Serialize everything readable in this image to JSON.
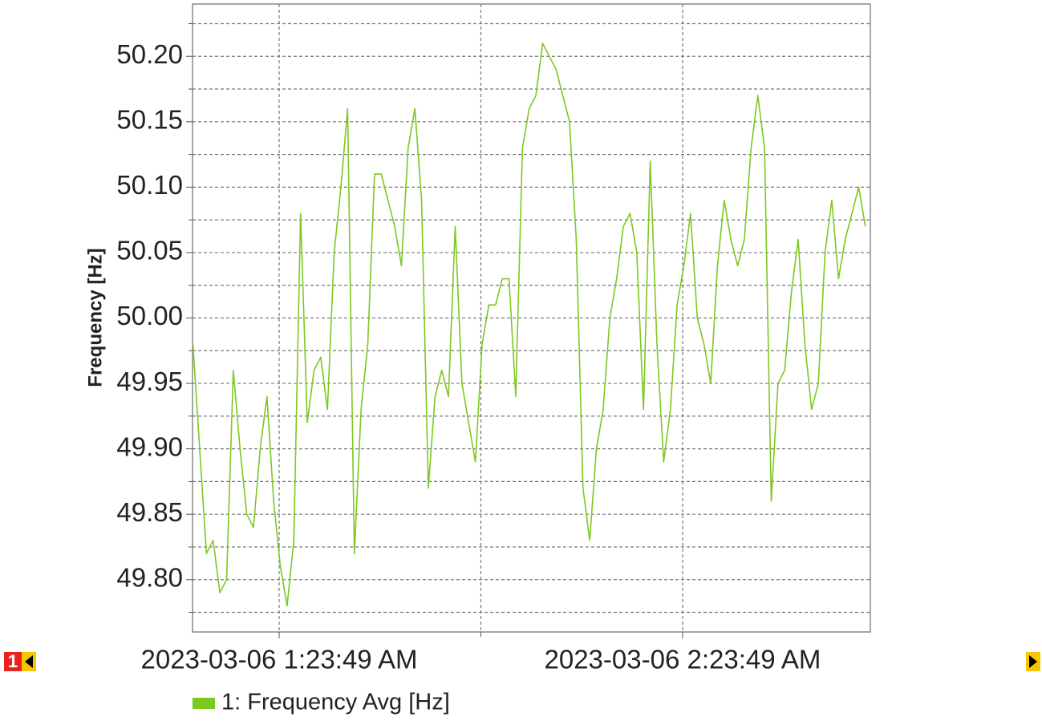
{
  "chart_data": {
    "type": "line",
    "y_label": "Frequency [Hz]",
    "x": [
      "2023-03-06T01:11:00",
      "2023-03-06T01:12:00",
      "2023-03-06T01:13:00",
      "2023-03-06T01:14:00",
      "2023-03-06T01:15:00",
      "2023-03-06T01:16:00",
      "2023-03-06T01:17:00",
      "2023-03-06T01:18:00",
      "2023-03-06T01:19:00",
      "2023-03-06T01:20:00",
      "2023-03-06T01:21:00",
      "2023-03-06T01:22:00",
      "2023-03-06T01:23:00",
      "2023-03-06T01:24:00",
      "2023-03-06T01:25:00",
      "2023-03-06T01:26:00",
      "2023-03-06T01:27:00",
      "2023-03-06T01:28:00",
      "2023-03-06T01:29:00",
      "2023-03-06T01:30:00",
      "2023-03-06T01:31:00",
      "2023-03-06T01:32:00",
      "2023-03-06T01:33:00",
      "2023-03-06T01:34:00",
      "2023-03-06T01:35:00",
      "2023-03-06T01:36:00",
      "2023-03-06T01:37:00",
      "2023-03-06T01:38:00",
      "2023-03-06T01:39:00",
      "2023-03-06T01:40:00",
      "2023-03-06T01:41:00",
      "2023-03-06T01:42:00",
      "2023-03-06T01:43:00",
      "2023-03-06T01:44:00",
      "2023-03-06T01:45:00",
      "2023-03-06T01:46:00",
      "2023-03-06T01:47:00",
      "2023-03-06T01:48:00",
      "2023-03-06T01:49:00",
      "2023-03-06T01:50:00",
      "2023-03-06T01:51:00",
      "2023-03-06T01:52:00",
      "2023-03-06T01:53:00",
      "2023-03-06T01:54:00",
      "2023-03-06T01:55:00",
      "2023-03-06T01:56:00",
      "2023-03-06T01:57:00",
      "2023-03-06T01:58:00",
      "2023-03-06T01:59:00",
      "2023-03-06T02:00:00",
      "2023-03-06T02:01:00",
      "2023-03-06T02:02:00",
      "2023-03-06T02:03:00",
      "2023-03-06T02:04:00",
      "2023-03-06T02:05:00",
      "2023-03-06T02:06:00",
      "2023-03-06T02:07:00",
      "2023-03-06T02:08:00",
      "2023-03-06T02:09:00",
      "2023-03-06T02:10:00",
      "2023-03-06T02:11:00",
      "2023-03-06T02:12:00",
      "2023-03-06T02:13:00",
      "2023-03-06T02:14:00",
      "2023-03-06T02:15:00",
      "2023-03-06T02:16:00",
      "2023-03-06T02:17:00",
      "2023-03-06T02:18:00",
      "2023-03-06T02:19:00",
      "2023-03-06T02:20:00",
      "2023-03-06T02:21:00",
      "2023-03-06T02:22:00",
      "2023-03-06T02:23:00",
      "2023-03-06T02:24:00",
      "2023-03-06T02:25:00",
      "2023-03-06T02:26:00",
      "2023-03-06T02:27:00",
      "2023-03-06T02:28:00",
      "2023-03-06T02:29:00",
      "2023-03-06T02:30:00",
      "2023-03-06T02:31:00",
      "2023-03-06T02:32:00",
      "2023-03-06T02:33:00",
      "2023-03-06T02:34:00",
      "2023-03-06T02:35:00",
      "2023-03-06T02:36:00",
      "2023-03-06T02:37:00",
      "2023-03-06T02:38:00",
      "2023-03-06T02:39:00",
      "2023-03-06T02:40:00",
      "2023-03-06T02:41:00",
      "2023-03-06T02:42:00",
      "2023-03-06T02:43:00",
      "2023-03-06T02:44:00",
      "2023-03-06T02:45:00",
      "2023-03-06T02:46:00",
      "2023-03-06T02:47:00",
      "2023-03-06T02:48:00",
      "2023-03-06T02:49:00",
      "2023-03-06T02:50:00",
      "2023-03-06T02:51:00"
    ],
    "series": [
      {
        "name": "1: Frequency Avg [Hz]",
        "color": "#7dc820",
        "values": [
          49.98,
          49.9,
          49.82,
          49.83,
          49.79,
          49.8,
          49.96,
          49.9,
          49.85,
          49.84,
          49.9,
          49.94,
          49.86,
          49.81,
          49.78,
          49.83,
          50.08,
          49.92,
          49.96,
          49.97,
          49.93,
          50.05,
          50.1,
          50.16,
          49.82,
          49.93,
          49.98,
          50.11,
          50.11,
          50.09,
          50.07,
          50.04,
          50.13,
          50.16,
          50.09,
          49.87,
          49.94,
          49.96,
          49.94,
          50.07,
          49.95,
          49.92,
          49.89,
          49.98,
          50.01,
          50.01,
          50.03,
          50.03,
          49.94,
          50.13,
          50.16,
          50.17,
          50.21,
          50.2,
          50.19,
          50.17,
          50.15,
          50.06,
          49.87,
          49.83,
          49.9,
          49.93,
          50.0,
          50.03,
          50.07,
          50.08,
          50.05,
          49.93,
          50.12,
          49.98,
          49.89,
          49.93,
          50.01,
          50.04,
          50.08,
          50.0,
          49.98,
          49.95,
          50.04,
          50.09,
          50.06,
          50.04,
          50.06,
          50.13,
          50.17,
          50.13,
          49.86,
          49.95,
          49.96,
          50.02,
          50.06,
          49.98,
          49.93,
          49.95,
          50.05,
          50.09,
          50.03,
          50.06,
          50.08,
          50.1,
          50.07
        ]
      }
    ],
    "xlim": [
      "2023-03-06T01:10:56",
      "2023-03-06T02:51:44"
    ],
    "xticks": [
      {
        "value": "2023-03-06T01:23:49",
        "label": "2023-03-06 1:23:49 AM"
      },
      {
        "value": "2023-03-06T02:23:49",
        "label": "2023-03-06 2:23:49 AM"
      }
    ],
    "xminorticks": [
      "2023-03-06T01:53:49"
    ],
    "ylim": [
      49.76,
      50.24
    ],
    "yticks": [
      {
        "value": 49.8,
        "label": "49.80"
      },
      {
        "value": 49.85,
        "label": "49.85"
      },
      {
        "value": 49.9,
        "label": "49.90"
      },
      {
        "value": 49.95,
        "label": "49.95"
      },
      {
        "value": 50,
        "label": "50.00"
      },
      {
        "value": 50.05,
        "label": "50.05"
      },
      {
        "value": 50.1,
        "label": "50.10"
      },
      {
        "value": 50.15,
        "label": "50.15"
      },
      {
        "value": 50.2,
        "label": "50.20"
      }
    ],
    "yminorticks": [
      49.775,
      49.825,
      49.875,
      49.925,
      49.975,
      50.025,
      50.075,
      50.125,
      50.175,
      50.225
    ],
    "grid": true
  },
  "nav_page": "1"
}
